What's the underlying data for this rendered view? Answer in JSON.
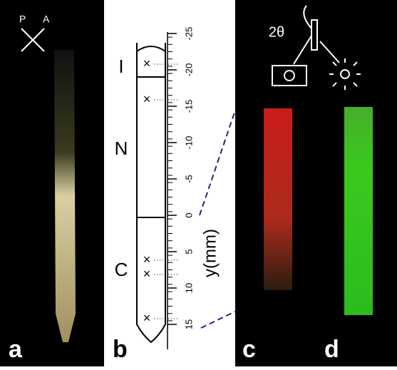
{
  "panel_a": {
    "polarizer": "P",
    "analyzer": "A",
    "letter": "a"
  },
  "panel_b": {
    "letter": "b",
    "phases": [
      "I",
      "N",
      "C"
    ],
    "marker": "×",
    "ruler": {
      "label": "y(mm)",
      "ticks": [
        -25,
        -20,
        -15,
        -10,
        -5,
        0,
        5,
        10,
        15
      ]
    }
  },
  "panel_c": {
    "letter": "c",
    "angle": "2θ"
  },
  "panel_d": {
    "letter": "d"
  }
}
